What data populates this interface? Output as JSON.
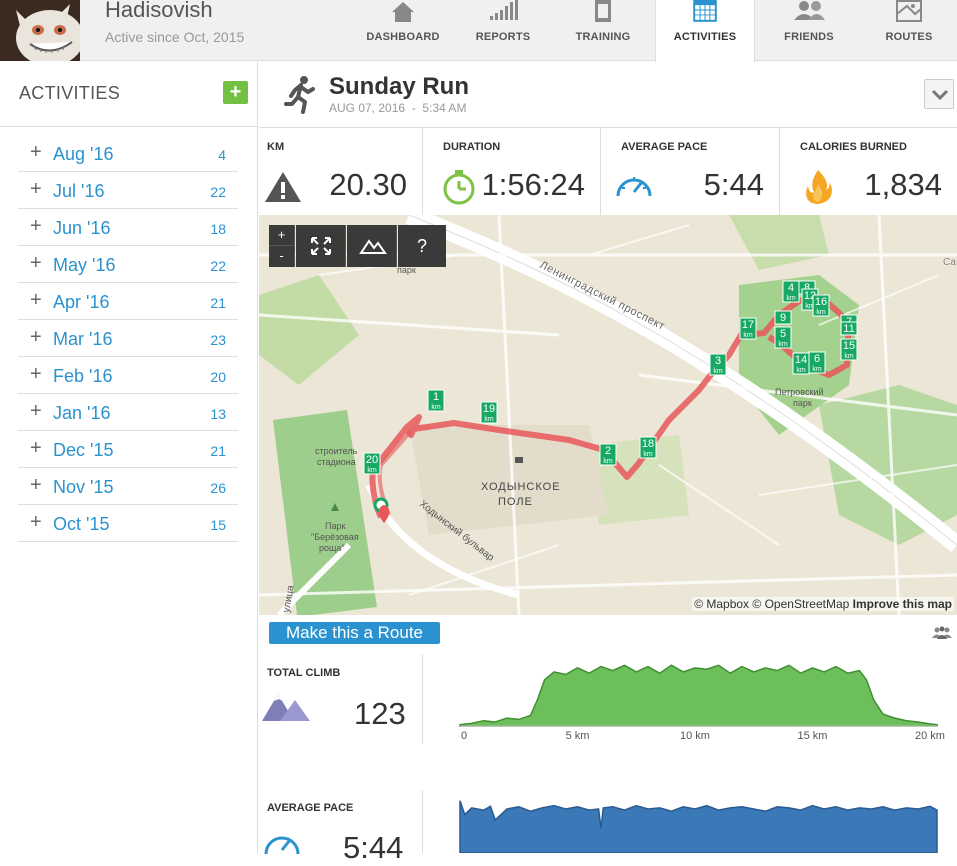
{
  "user": {
    "name": "Hadisovish",
    "since": "Active since Oct, 2015"
  },
  "nav": [
    {
      "label": "DASHBOARD",
      "icon": "home-icon"
    },
    {
      "label": "REPORTS",
      "icon": "bar-chart-icon"
    },
    {
      "label": "TRAINING",
      "icon": "clipboard-icon"
    },
    {
      "label": "ACTIVITIES",
      "icon": "calendar-icon",
      "active": true
    },
    {
      "label": "FRIENDS",
      "icon": "friends-icon"
    },
    {
      "label": "ROUTES",
      "icon": "map-icon"
    }
  ],
  "sidebar": {
    "title": "ACTIVITIES",
    "add_label": "+",
    "months": [
      {
        "label": "Aug '16",
        "count": "4"
      },
      {
        "label": "Jul '16",
        "count": "22"
      },
      {
        "label": "Jun '16",
        "count": "18"
      },
      {
        "label": "May '16",
        "count": "22"
      },
      {
        "label": "Apr '16",
        "count": "21"
      },
      {
        "label": "Mar '16",
        "count": "23"
      },
      {
        "label": "Feb '16",
        "count": "20"
      },
      {
        "label": "Jan '16",
        "count": "13"
      },
      {
        "label": "Dec '15",
        "count": "21"
      },
      {
        "label": "Nov '15",
        "count": "26"
      },
      {
        "label": "Oct '15",
        "count": "15"
      }
    ]
  },
  "activity": {
    "title": "Sunday Run",
    "date": "AUG 07, 2016",
    "date_sep": "-",
    "time": "5:34 AM"
  },
  "stats": {
    "km": {
      "label": "KM",
      "value": "20.30"
    },
    "duration": {
      "label": "DURATION",
      "value": "1:56:24"
    },
    "pace": {
      "label": "AVERAGE PACE",
      "value": "5:44"
    },
    "calories": {
      "label": "CALORIES BURNED",
      "value": "1,834"
    }
  },
  "map": {
    "controls": {
      "zoom_in": "+",
      "zoom_out": "-",
      "help": "?"
    },
    "attribution": {
      "mapbox": "© Mapbox",
      "osm": "© OpenStreetMap",
      "improve": "Improve this map"
    },
    "labels": {
      "prospekt": "Ленинградский проспект",
      "field1": "ХОДЫНСКОЕ",
      "field2": "ПОЛЕ",
      "park_north": "парк",
      "petrovsky1": "Петровский",
      "petrovsky2": "парк",
      "stroitel1": "строитель",
      "stroitel2": "стадиона",
      "park_bereza1": "Парк",
      "park_bereza2": "\"Берёзовая",
      "park_bereza3": "роща\"",
      "boulevard": "Ходынский бульвар",
      "street": "улица",
      "corner": "Са"
    },
    "km_markers": [
      {
        "n": "1",
        "unit": "km"
      },
      {
        "n": "2",
        "unit": "km"
      },
      {
        "n": "3",
        "unit": "km"
      },
      {
        "n": "4",
        "unit": "km"
      },
      {
        "n": "5",
        "unit": "km"
      },
      {
        "n": "6",
        "unit": "km"
      },
      {
        "n": "7",
        "unit": ""
      },
      {
        "n": "8",
        "unit": ""
      },
      {
        "n": "9",
        "unit": ""
      },
      {
        "n": "11",
        "unit": ""
      },
      {
        "n": "12",
        "unit": "km"
      },
      {
        "n": "14",
        "unit": "km"
      },
      {
        "n": "15",
        "unit": "km"
      },
      {
        "n": "16",
        "unit": "km"
      },
      {
        "n": "17",
        "unit": "km"
      },
      {
        "n": "18",
        "unit": "km"
      },
      {
        "n": "19",
        "unit": "km"
      },
      {
        "n": "20",
        "unit": "km"
      }
    ]
  },
  "route_button": "Make this a Route",
  "climb": {
    "label": "TOTAL CLIMB",
    "value": "123"
  },
  "avg_pace": {
    "label": "AVERAGE PACE",
    "value": "5:44"
  },
  "colors": {
    "accent": "#2a93cf",
    "green": "#74c043",
    "route": "#e8575a",
    "marker": "#17a964",
    "pace": "#3a78b8"
  },
  "chart_data": [
    {
      "type": "area",
      "title": "",
      "xlabel": "km",
      "ylabel": "",
      "x_ticks": [
        "0",
        "5 km",
        "10 km",
        "15 km",
        "20 km"
      ],
      "xlim": [
        0,
        20.3
      ],
      "series": [
        {
          "x": [
            0,
            0.5,
            1,
            1.5,
            2,
            2.5,
            3,
            3.3,
            3.6,
            4,
            4.5,
            5,
            5.5,
            6,
            6.5,
            7,
            7.5,
            8,
            8.5,
            9,
            9.5,
            10,
            10.5,
            11,
            11.5,
            12,
            12.5,
            13,
            13.5,
            14,
            14.5,
            15,
            15.5,
            16,
            16.5,
            17,
            17.3,
            17.6,
            18,
            18.5,
            19,
            19.5,
            20,
            20.3
          ],
          "y": [
            2,
            4,
            8,
            6,
            12,
            10,
            16,
            40,
            70,
            82,
            78,
            88,
            80,
            90,
            84,
            92,
            82,
            90,
            80,
            92,
            82,
            88,
            86,
            92,
            80,
            90,
            82,
            88,
            84,
            92,
            80,
            88,
            82,
            90,
            80,
            84,
            70,
            40,
            18,
            12,
            8,
            6,
            3,
            2
          ]
        }
      ]
    },
    {
      "type": "area",
      "title": "",
      "xlabel": "km",
      "ylabel": "",
      "xlim": [
        0,
        20.3
      ],
      "series": [
        {
          "x": [
            0,
            0.2,
            0.5,
            1,
            1.3,
            1.5,
            2,
            2.5,
            3,
            3.5,
            4,
            4.5,
            5,
            5.5,
            5.9,
            6,
            6.1,
            6.5,
            7,
            7.5,
            8,
            8.5,
            9,
            9.5,
            10,
            10.5,
            11,
            11.5,
            12,
            12.5,
            13,
            13.5,
            14,
            14.5,
            15,
            15.5,
            16,
            16.5,
            17,
            17.5,
            18,
            18.5,
            19,
            19.5,
            20,
            20.3
          ],
          "y": [
            95,
            70,
            82,
            78,
            85,
            60,
            80,
            84,
            76,
            82,
            86,
            80,
            84,
            78,
            80,
            45,
            82,
            84,
            78,
            86,
            80,
            82,
            76,
            84,
            80,
            86,
            78,
            82,
            84,
            80,
            76,
            84,
            82,
            78,
            86,
            80,
            84,
            78,
            82,
            80,
            84,
            78,
            82,
            80,
            85,
            78
          ]
        }
      ]
    }
  ]
}
